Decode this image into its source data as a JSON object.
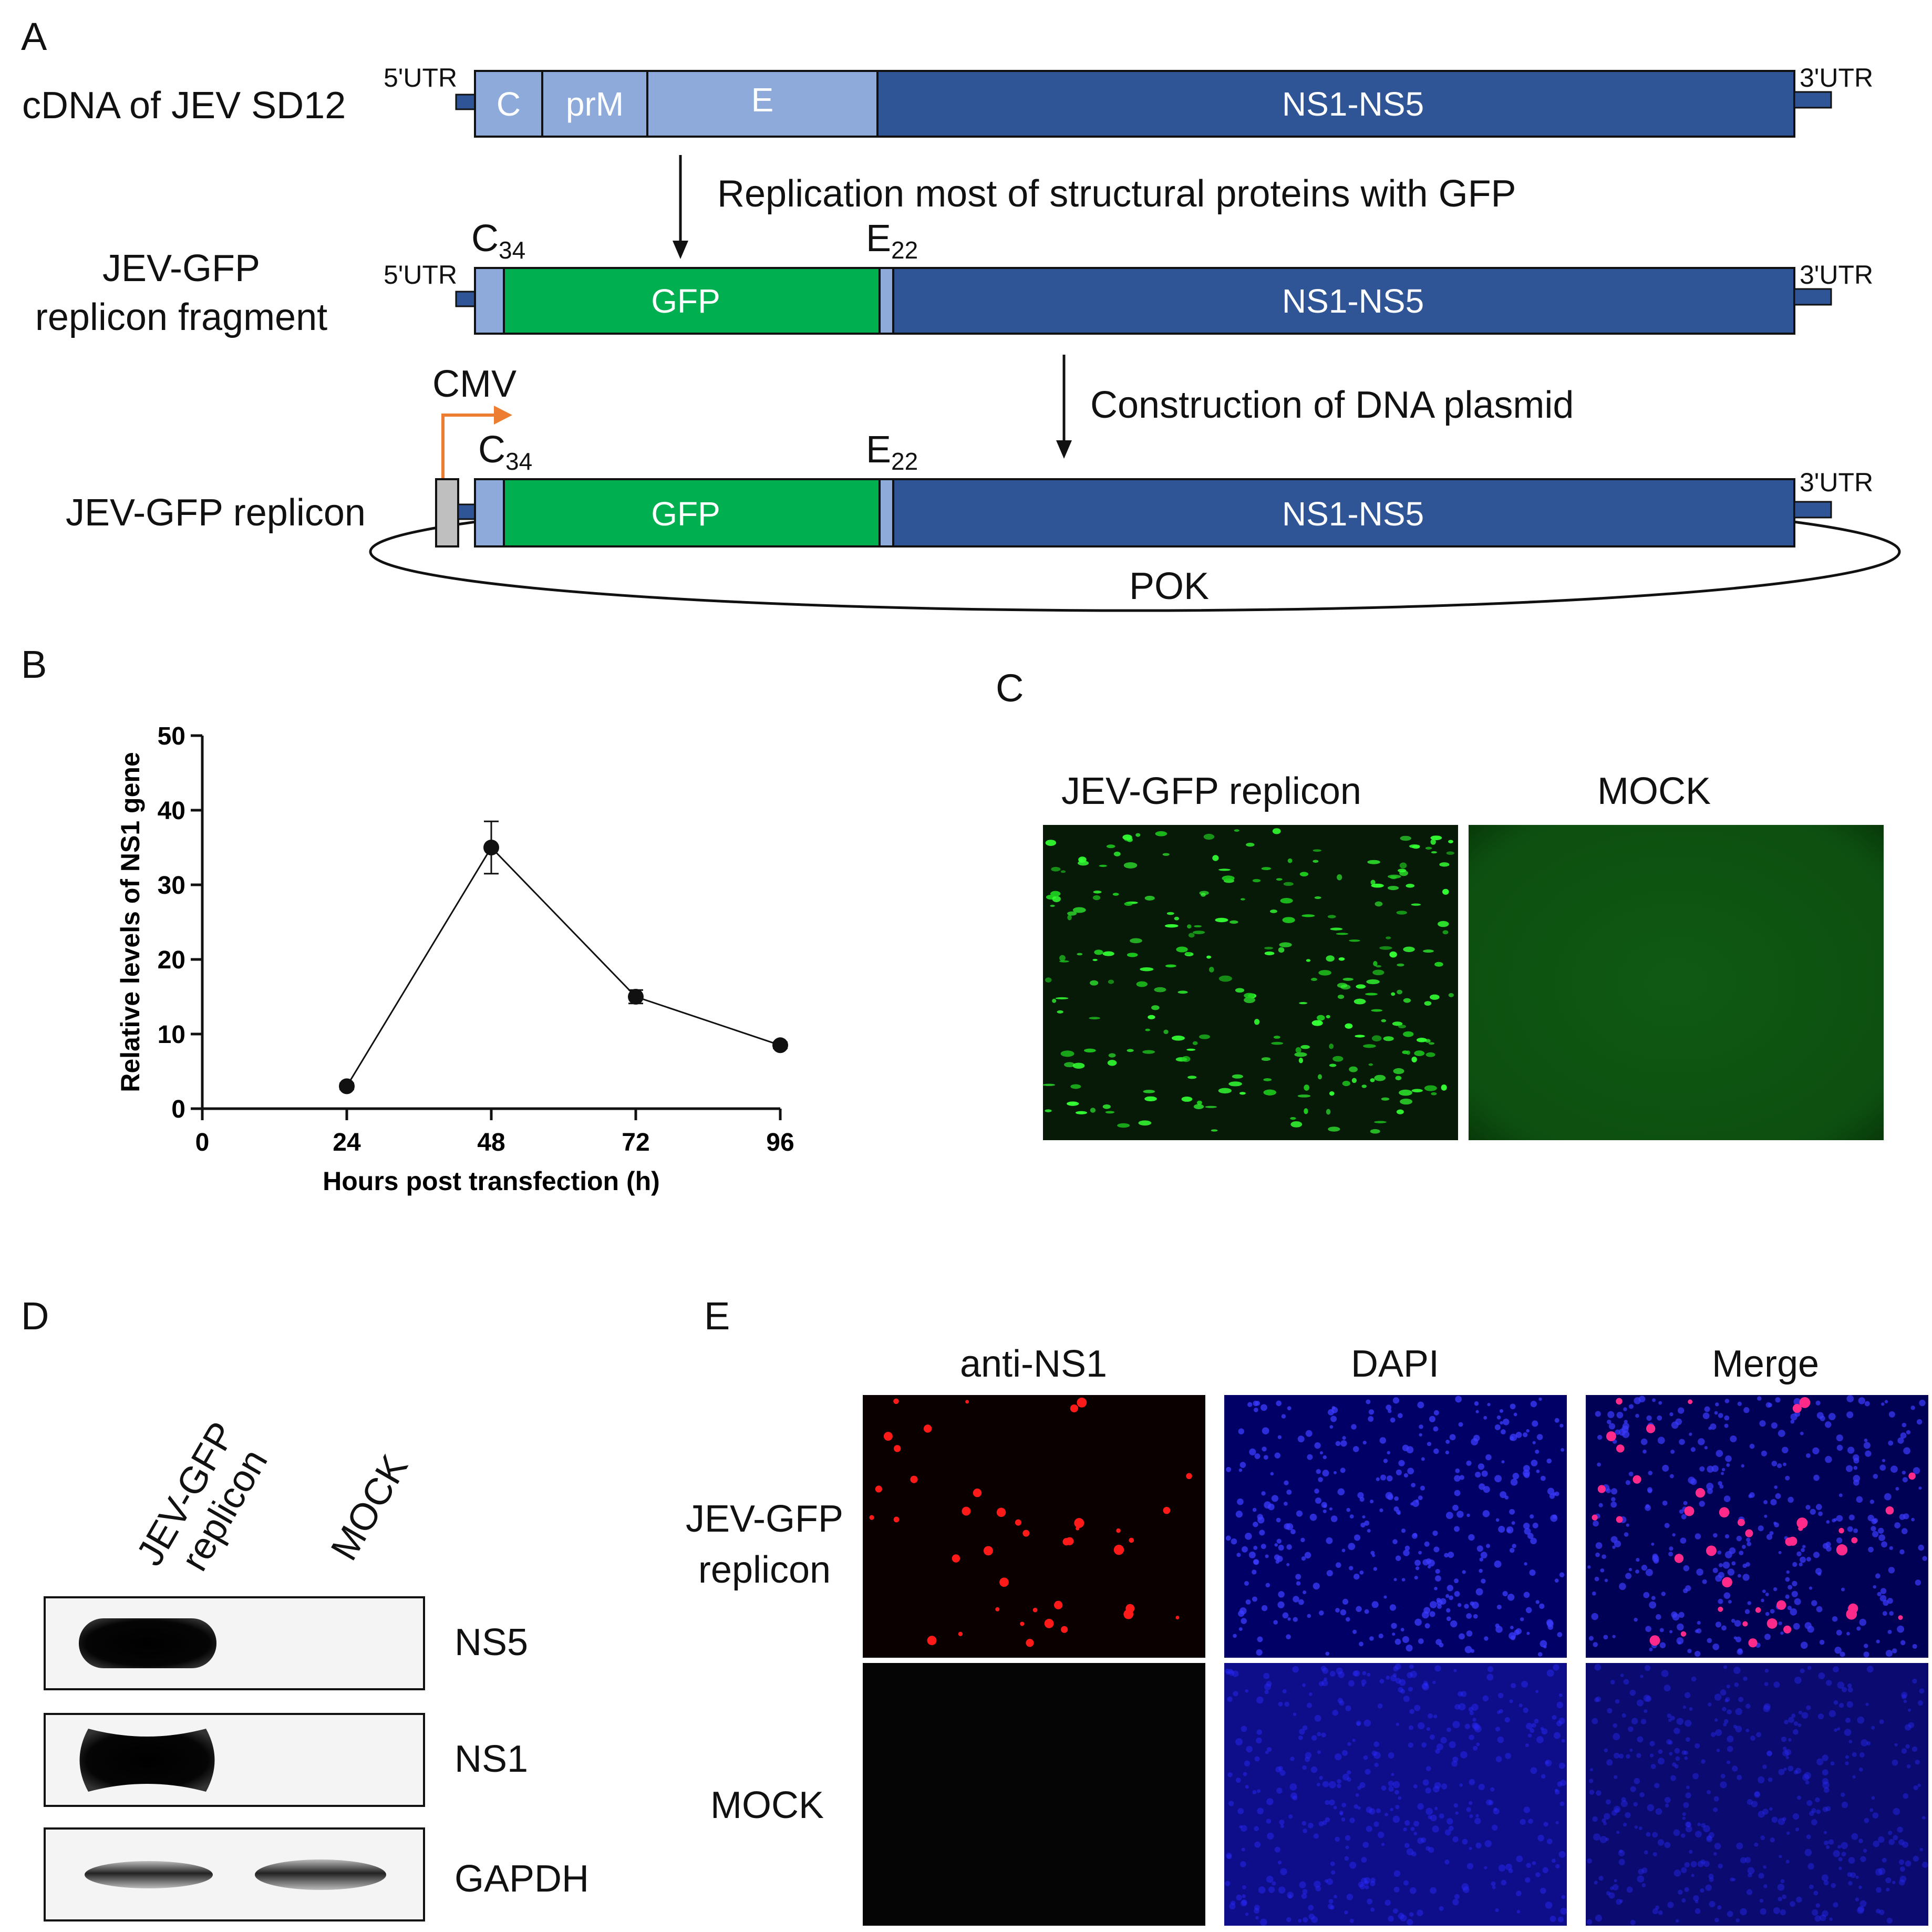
{
  "panel_labels": {
    "a": "A",
    "b": "B",
    "c": "C",
    "d": "D",
    "e": "E"
  },
  "colors": {
    "structural": "#8eaadb",
    "nonstructural": "#2f5597",
    "gfp": "#00b050",
    "promoter": "#ed7d31",
    "red_stain": "#ff1a1a",
    "dapi": "#1a1aff"
  },
  "panel_a": {
    "row1": {
      "label": "cDNA of JEV SD12",
      "utr5": "5'UTR",
      "utr3": "3'UTR",
      "segments": {
        "c": "C",
        "prm": "prM",
        "e": "E",
        "ns": "NS1-NS5"
      }
    },
    "step1": "Replication most of structural proteins with GFP",
    "row2": {
      "label_line1": "JEV-GFP",
      "label_line2": "replicon fragment",
      "utr5": "5'UTR",
      "utr3": "3'UTR",
      "c_base": "C",
      "c_sub": "34",
      "e_base": "E",
      "e_sub": "22",
      "gfp": "GFP",
      "ns": "NS1-NS5"
    },
    "step2": "Construction of DNA plasmid",
    "row3": {
      "label": "JEV-GFP replicon",
      "promoter": "CMV",
      "c_base": "C",
      "c_sub": "34",
      "e_base": "E",
      "e_sub": "22",
      "gfp": "GFP",
      "ns": "NS1-NS5",
      "utr3": "3'UTR",
      "plasmid": "POK"
    }
  },
  "panel_b": {
    "chart_data": {
      "type": "line",
      "x": [
        24,
        48,
        72,
        96
      ],
      "y": [
        3,
        35,
        15,
        8.5
      ],
      "error": [
        0.4,
        3.5,
        0.9,
        0.4
      ],
      "xlabel": "Hours post transfection (h)",
      "ylabel": "Relative levels of NS1 gene",
      "xlim": [
        0,
        96
      ],
      "ylim": [
        0,
        50
      ],
      "xticks": [
        0,
        24,
        48,
        72,
        96
      ],
      "yticks": [
        0,
        10,
        20,
        30,
        40,
        50
      ],
      "grid": false
    }
  },
  "panel_c": {
    "headers": [
      "JEV-GFP  replicon",
      "MOCK"
    ]
  },
  "panel_d": {
    "lanes": [
      "JEV-GFP\nreplicon",
      "MOCK"
    ],
    "lane_line1": "JEV-GFP",
    "lane_line2": "replicon",
    "lane_mock": "MOCK",
    "bands": [
      "NS5",
      "NS1",
      "GAPDH"
    ]
  },
  "panel_e": {
    "columns": [
      "anti-NS1",
      "DAPI",
      "Merge"
    ],
    "row1_line1": "JEV-GFP",
    "row1_line2": "replicon",
    "row2": "MOCK"
  }
}
